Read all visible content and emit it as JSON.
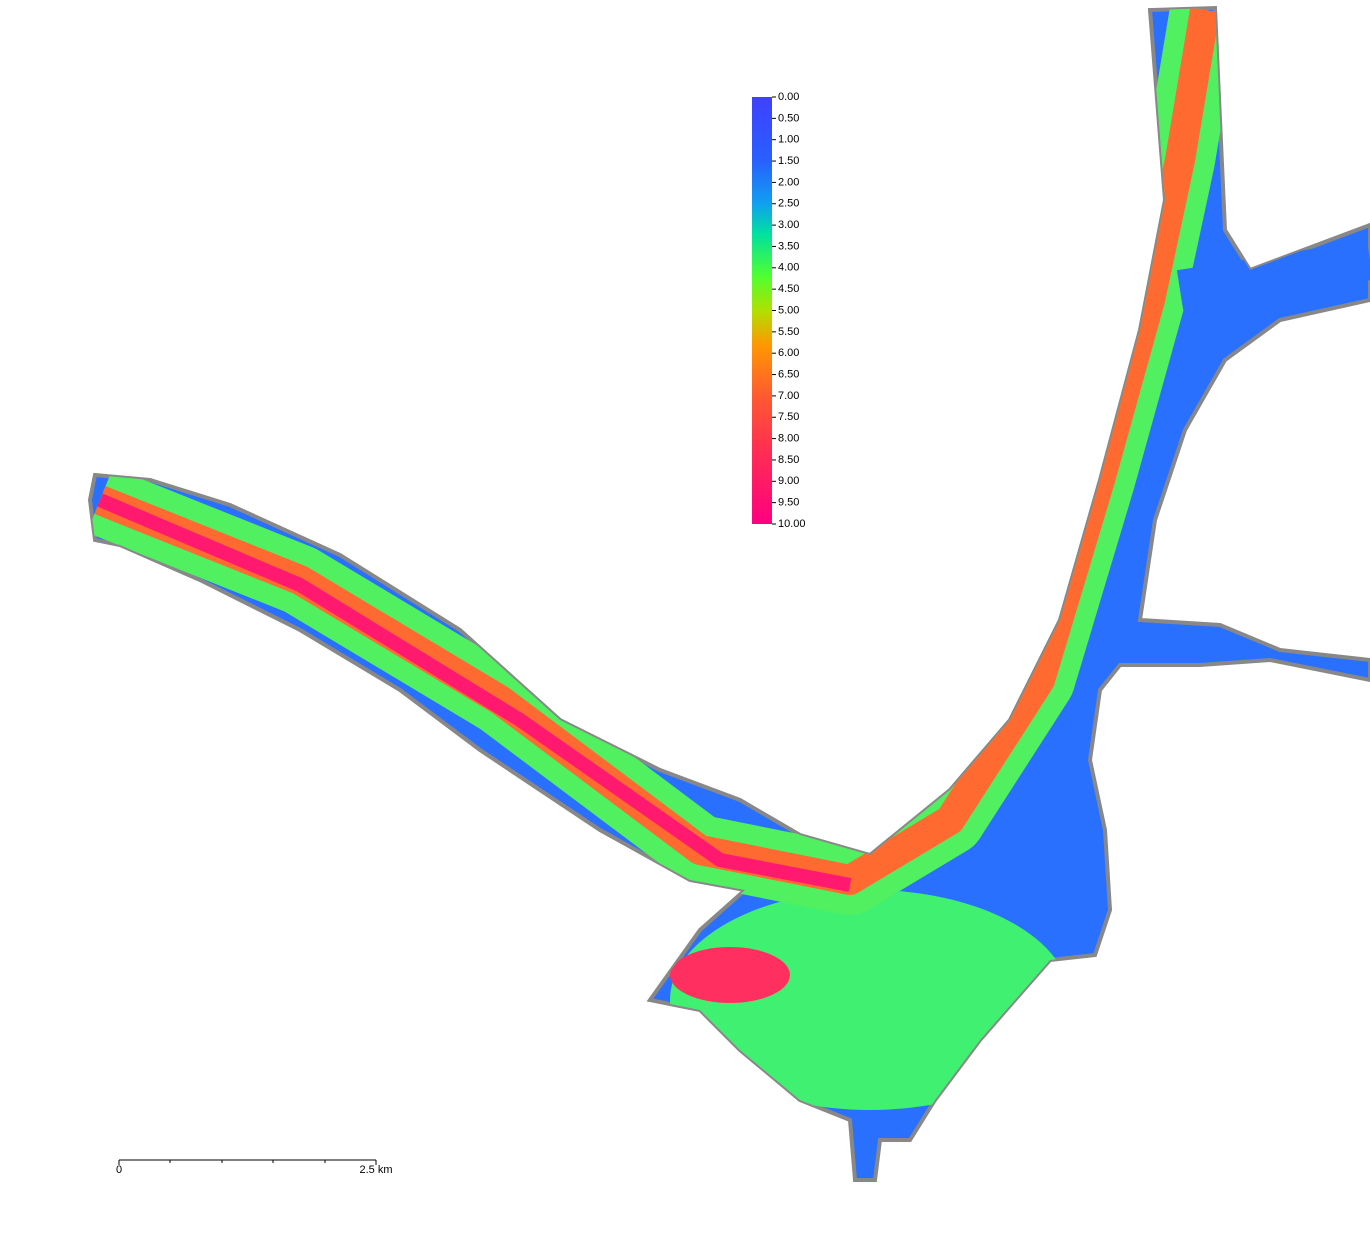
{
  "legend": {
    "labels": [
      "0.00",
      "0.50",
      "1.00",
      "1.50",
      "2.00",
      "2.50",
      "3.00",
      "3.50",
      "4.00",
      "4.50",
      "5.00",
      "5.50",
      "6.00",
      "6.50",
      "7.00",
      "7.50",
      "8.00",
      "8.50",
      "9.00",
      "9.50",
      "10.00"
    ]
  },
  "scale_bar": {
    "start_label": "0",
    "end_label": "2.5 km"
  }
}
